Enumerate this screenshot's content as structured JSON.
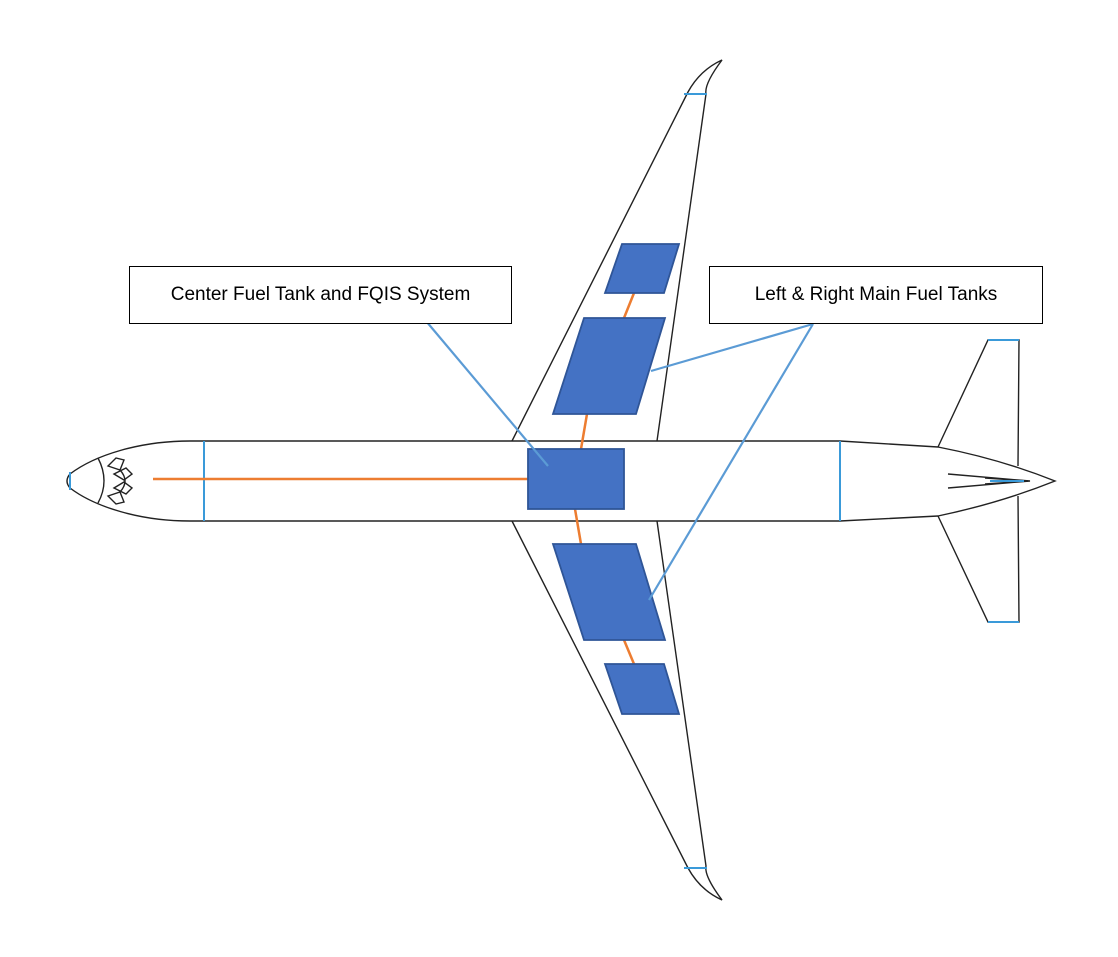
{
  "labels": {
    "center_tank": "Center Fuel Tank and FQIS System",
    "main_tanks": "Left & Right Main Fuel Tanks"
  },
  "colors": {
    "outline": "#222222",
    "tank_fill": "#4472C4",
    "tank_border": "#2F5597",
    "wiring": "#ED7D31",
    "leader": "#5B9BD5",
    "marker": "#3A9AD9"
  },
  "icons": {
    "aircraft": "aircraft-top-view-outline"
  }
}
